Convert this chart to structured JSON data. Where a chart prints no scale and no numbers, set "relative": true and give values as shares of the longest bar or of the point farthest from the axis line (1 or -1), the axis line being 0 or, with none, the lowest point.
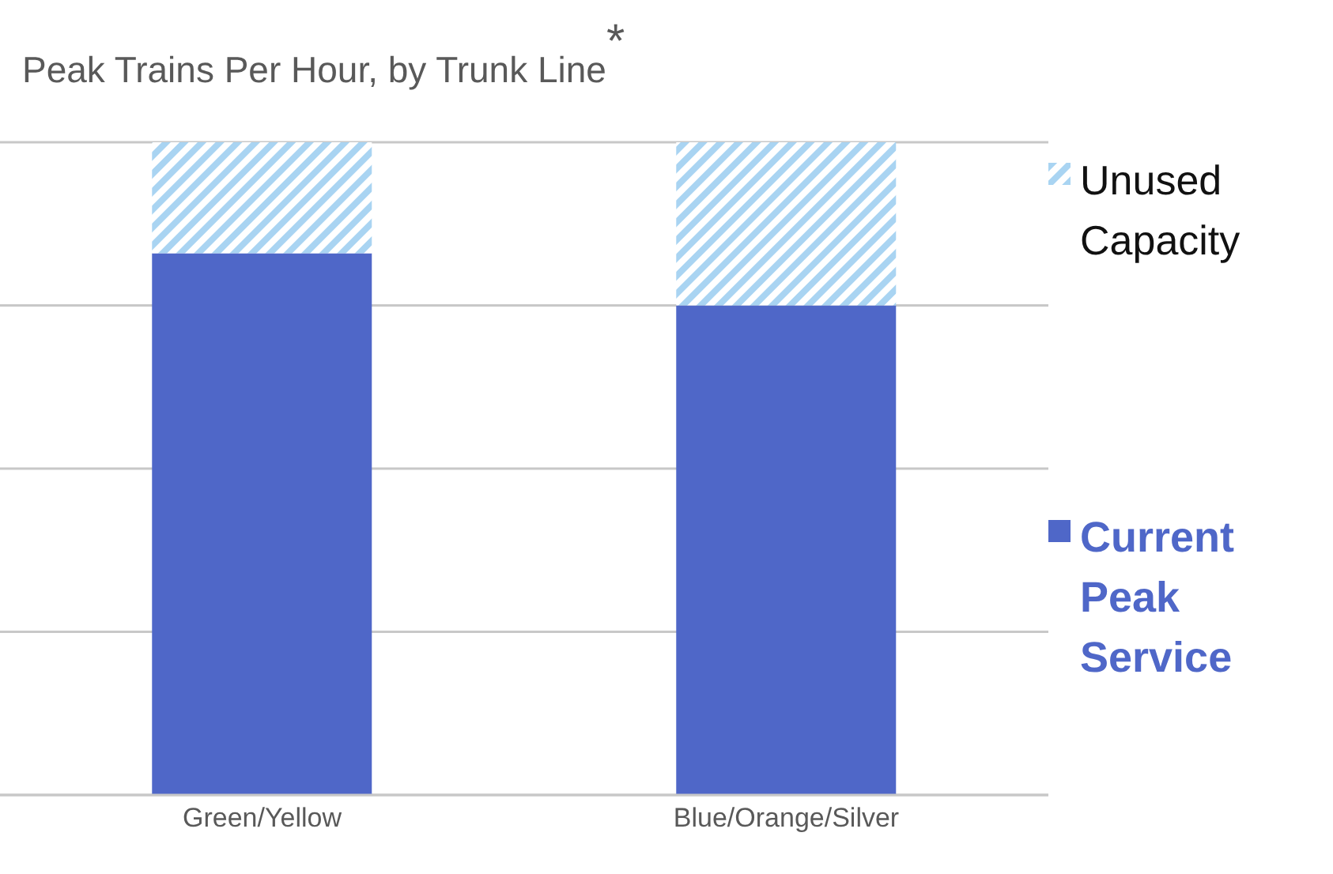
{
  "chart_data": {
    "type": "bar",
    "title": "Peak Trains Per Hour, by Trunk Line$^{*}$",
    "categories": [
      "Green/Yellow",
      "Blue/Orange/Silver"
    ],
    "stacked": true,
    "relative": true,
    "grid": "y",
    "legend": "right",
    "series": [
      {
        "name": "Current Peak Service",
        "color": "#4f67c8",
        "values": [
          0.83,
          0.75
        ]
      },
      {
        "name": "Unused Capacity",
        "color": "#a9d4f2",
        "values": [
          0.17,
          0.25
        ]
      }
    ]
  }
}
